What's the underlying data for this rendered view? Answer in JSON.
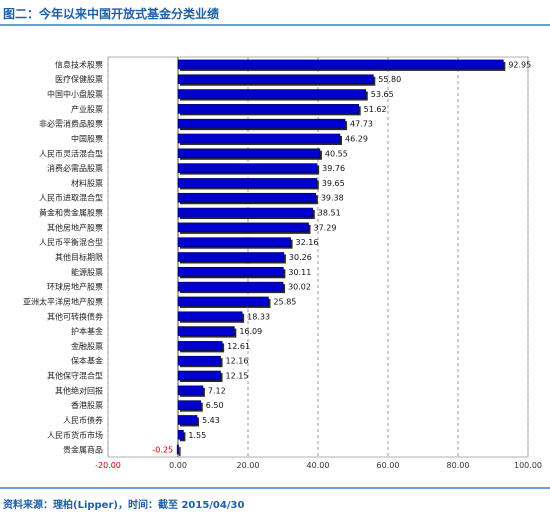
{
  "title": "图二：今年以来中国开放式基金分类业绩",
  "source": "资料来源：理柏(Lipper)，时间：截至 2015/04/30",
  "colors": {
    "bar": "#0000cc",
    "bar_shadow": "#2a2a2a",
    "negative_label": "#cc0000",
    "header": "#1f5fa8",
    "grid": "#9a9a9a"
  },
  "chart_data": {
    "type": "bar",
    "orientation": "horizontal",
    "title": "",
    "xlabel": "",
    "ylabel": "",
    "xlim": [
      -20,
      100
    ],
    "ticks": [
      "-20.00",
      "0.00",
      "20.00",
      "40.00",
      "60.00",
      "80.00",
      "100.00"
    ],
    "tick_values": [
      -20,
      0,
      20,
      40,
      60,
      80,
      100
    ],
    "grid": true,
    "categories": [
      "信息技术股票",
      "医疗保健股票",
      "中国中小盘股票",
      "产业股票",
      "非必需消费品股票",
      "中国股票",
      "人民币灵活混合型",
      "消费必需品股票",
      "材料股票",
      "人民币进取混合型",
      "黄金和贵金属股票",
      "其他房地产股票",
      "人民币平衡混合型",
      "其他目标期限",
      "能源股票",
      "环球房地产股票",
      "亚洲太平洋房地产股票",
      "其他可转换债券",
      "护本基金",
      "金融股票",
      "保本基金",
      "其他保守混合型",
      "其他绝对回报",
      "香港股票",
      "人民币债券",
      "人民币货币市场",
      "贵金属商品"
    ],
    "values": [
      92.95,
      55.8,
      53.65,
      51.62,
      47.73,
      46.29,
      40.55,
      39.76,
      39.65,
      39.38,
      38.51,
      37.29,
      32.16,
      30.26,
      30.11,
      30.02,
      25.85,
      18.33,
      16.09,
      12.61,
      12.16,
      12.15,
      7.12,
      6.5,
      5.43,
      1.55,
      -0.25
    ],
    "labels": [
      "92.95",
      "55.80",
      "53.65",
      "51.62",
      "47.73",
      "46.29",
      "40.55",
      "39.76",
      "39.65",
      "39.38",
      "38.51",
      "37.29",
      "32.16",
      "30.26",
      "30.11",
      "30.02",
      "25.85",
      "18.33",
      "16.09",
      "12.61",
      "12.16",
      "12.15",
      "7.12",
      "6.50",
      "5.43",
      "1.55",
      "-0.25"
    ]
  }
}
